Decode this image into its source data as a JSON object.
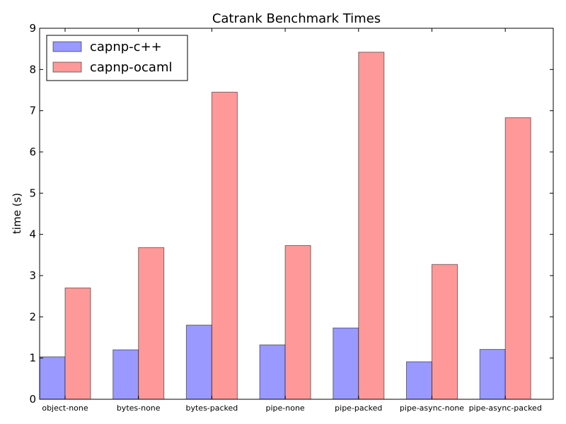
{
  "chart_data": {
    "type": "bar",
    "title": "Catrank Benchmark Times",
    "xlabel": "",
    "ylabel": "time (s)",
    "ylim": [
      0,
      9
    ],
    "yticks": [
      "0",
      "1",
      "2",
      "3",
      "4",
      "5",
      "6",
      "7",
      "8",
      "9"
    ],
    "categories": [
      "object-none",
      "bytes-none",
      "bytes-packed",
      "pipe-none",
      "pipe-packed",
      "pipe-async-none",
      "pipe-async-packed"
    ],
    "series": [
      {
        "name": "capnp-c++",
        "color": "#9999ff",
        "values": [
          1.03,
          1.2,
          1.8,
          1.32,
          1.73,
          0.91,
          1.21
        ]
      },
      {
        "name": "capnp-ocaml",
        "color": "#ff9999",
        "values": [
          2.7,
          3.68,
          7.45,
          3.73,
          8.42,
          3.27,
          6.83
        ]
      }
    ],
    "legend_position": "top-left",
    "grid": false
  }
}
